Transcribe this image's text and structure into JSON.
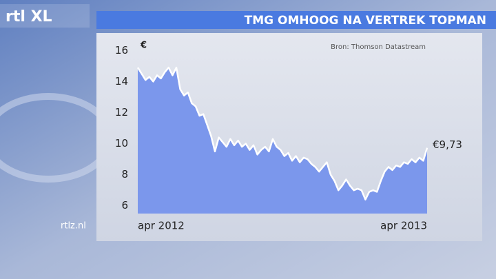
{
  "brand": "rtl XL",
  "website": "rtlz.nl",
  "chart_data": {
    "type": "line",
    "title": "TMG OMHOOG NA VERTREK TOPMAN",
    "y_label": "€",
    "source": "Bron: Thomson Datastream",
    "categories": [
      "apr 2012",
      null,
      null,
      null,
      null,
      null,
      null,
      null,
      null,
      null,
      null,
      null,
      null,
      null,
      null,
      null,
      null,
      null,
      null,
      null,
      null,
      null,
      null,
      null,
      null,
      null,
      null,
      null,
      null,
      null,
      null,
      null,
      null,
      null,
      null,
      null,
      null,
      null,
      null,
      null,
      null,
      null,
      null,
      null,
      null,
      null,
      null,
      null,
      null,
      null,
      null,
      null,
      null,
      null,
      null,
      null,
      null,
      null,
      null,
      null,
      null,
      null,
      null,
      null,
      null,
      null,
      null,
      null,
      null,
      null,
      null,
      null,
      null,
      null,
      null,
      "apr 2013"
    ],
    "values": [
      14.9,
      14.5,
      14.1,
      14.3,
      14.0,
      14.4,
      14.2,
      14.6,
      14.9,
      14.4,
      14.9,
      13.5,
      13.1,
      13.3,
      12.6,
      12.4,
      11.8,
      11.9,
      11.2,
      10.5,
      9.5,
      10.4,
      10.1,
      9.8,
      10.3,
      9.9,
      10.2,
      9.8,
      10.0,
      9.6,
      9.9,
      9.3,
      9.6,
      9.8,
      9.5,
      10.3,
      9.8,
      9.6,
      9.2,
      9.4,
      8.9,
      9.2,
      8.8,
      9.1,
      9.0,
      8.7,
      8.5,
      8.2,
      8.5,
      8.8,
      8.0,
      7.6,
      7.0,
      7.3,
      7.7,
      7.3,
      7.0,
      7.1,
      7.0,
      6.4,
      6.9,
      7.0,
      6.9,
      7.6,
      8.2,
      8.5,
      8.3,
      8.6,
      8.5,
      8.8,
      8.7,
      9.0,
      8.8,
      9.1,
      8.9,
      9.73
    ],
    "value_labels": [
      null,
      null,
      null,
      null,
      null,
      null,
      null,
      null,
      null,
      null,
      null,
      null,
      null,
      null,
      null,
      null,
      null,
      null,
      null,
      null,
      null,
      null,
      null,
      null,
      null,
      null,
      null,
      null,
      null,
      null,
      null,
      null,
      null,
      null,
      null,
      null,
      null,
      null,
      null,
      null,
      null,
      null,
      null,
      null,
      null,
      null,
      null,
      null,
      null,
      null,
      null,
      null,
      null,
      null,
      null,
      null,
      null,
      null,
      null,
      null,
      null,
      null,
      null,
      null,
      null,
      null,
      null,
      null,
      null,
      null,
      null,
      null,
      null,
      null,
      null,
      "€9,73"
    ],
    "line_color": "#ffffff",
    "area_color": "#7b97ec",
    "ylim": [
      5.5,
      16.5
    ],
    "yticks": [
      6,
      8,
      10,
      12,
      14,
      16
    ],
    "grid": false
  }
}
